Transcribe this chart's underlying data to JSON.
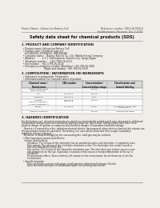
{
  "bg_color": "#f0ede8",
  "header_top_left": "Product Name: Lithium Ion Battery Cell",
  "header_top_right": "Reference number: SDS-LiB-00010\nEstablishment / Revision: Dec.7.2010",
  "title": "Safety data sheet for chemical products (SDS)",
  "section1_title": "1. PRODUCT AND COMPANY IDENTIFICATION",
  "section1_lines": [
    "  • Product name: Lithium Ion Battery Cell",
    "  • Product code: Cylindrical-type cell",
    "    (IHR18650U, IHR18650L, IHR18650A)",
    "  • Company name:    Bansyo Electric Co., Ltd.  Mobile Energy Company",
    "  • Address:          2-2-1  Kaminakaura, Sumoto-City, Hyogo, Japan",
    "  • Telephone number:    +81-(799)-26-4111",
    "  • Fax number:   +81-1799-26-4129",
    "  • Emergency telephone number (Weekday): +81-799-26-3942",
    "                                (Night and holiday): +81-799-26-4129"
  ],
  "section2_title": "2. COMPOSITION / INFORMATION ON INGREDIENTS",
  "section2_lines": [
    "  • Substance or preparation: Preparation",
    "  • Information about the chemical nature of product:"
  ],
  "table_headers": [
    "Chemical name /\nBrand name",
    "CAS number",
    "Concentration /\nConcentration range",
    "Classification and\nhazard labeling"
  ],
  "table_rows": [
    [
      "Lithium cobalt oxide\n(LiMn-Co-Oxide)",
      "-",
      "30-60%",
      ""
    ],
    [
      "Iron",
      "7439-89-6",
      "15-25%",
      "-"
    ],
    [
      "Aluminium",
      "7429-90-5",
      "2-8%",
      "-"
    ],
    [
      "Graphite\n(Metal in graphite-L)\n(Al-Mo in graphite-L)",
      "7782-42-5\n7440-44-0",
      "10-25%",
      ""
    ],
    [
      "Copper",
      "7440-50-8",
      "5-15%",
      "Sensitization of the skin\ngroup No.2"
    ],
    [
      "Organic electrolyte",
      "-",
      "10-20%",
      "Inflammable liquid"
    ]
  ],
  "section3_title": "3. HAZARDS IDENTIFICATION",
  "section3_para1": "For the battery cell, chemical materials are stored in a hermetically sealed metal case, designed to withstand\ntemperature and pressure-concentrations during normal use. As a result, during normal use, there is no\nphysical danger of ignition or explosion and therefore danger of hazardous materials leakage.",
  "section3_para2": "   However, if exposed to a fire, added mechanical shocks, decomposed, when electro-chemical dry misuse use,\nthe gas maybe cannot be operated. The battery cell case will be breached if fire erupts, hazardous\nmaterials may be released.\n   Moreover, if heated strongly by the surrounding fire, solid gas may be emitted.",
  "section3_hazard_title": "  • Most important hazard and effects:",
  "section3_hazard_lines": [
    "    Human health effects:",
    "        Inhalation: The release of the electrolyte has an anesthesia action and stimulates in respiratory tract.",
    "        Skin contact: The release of the electrolyte stimulates a skin. The electrolyte skin contact causes a",
    "        sore and stimulation on the skin.",
    "        Eye contact: The release of the electrolyte stimulates eyes. The electrolyte eye contact causes a sore",
    "        and stimulation on the eye. Especially, a substance that causes a strong inflammation of the eye is",
    "        contained.",
    "        Environmental effects: Since a battery cell remains in the environment, do not throw out it into the",
    "        environment."
  ],
  "section3_specific_title": "  • Specific hazards:",
  "section3_specific_lines": [
    "        If the electrolyte contacts with water, it will generate detrimental hydrogen fluoride.",
    "        Since the neat electrolyte is inflammable liquid, do not bring close to fire."
  ],
  "bottom_line": true
}
